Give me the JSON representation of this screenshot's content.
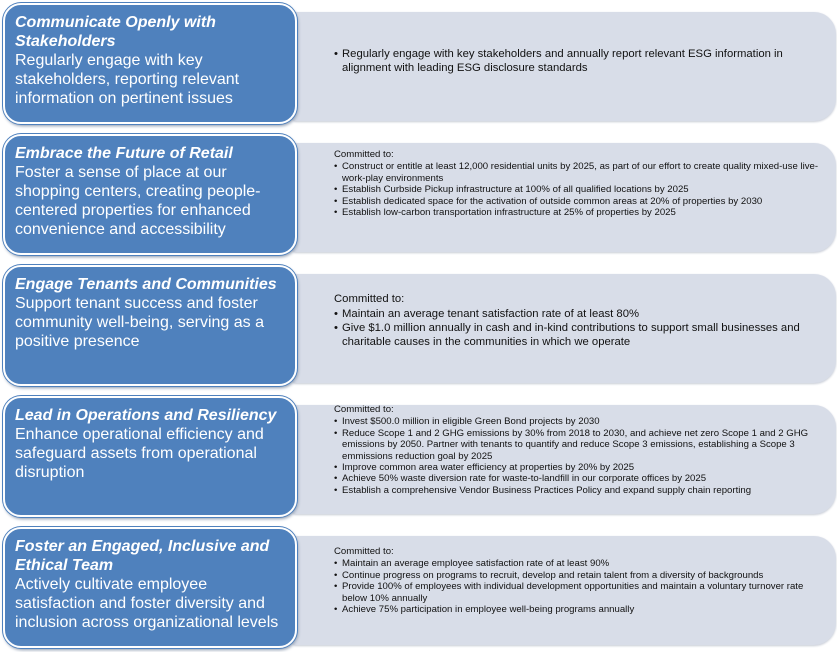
{
  "rows": [
    {
      "title": "Communicate Openly with Stakeholders",
      "description": "Regularly engage with key stakeholders, reporting relevant information on pertinent issues",
      "intro": "",
      "items": [
        "Regularly engage with key stakeholders and annually report relevant ESG information in alignment with leading ESG disclosure standards"
      ]
    },
    {
      "title": "Embrace the Future of Retail",
      "description": "Foster a sense of place at our shopping centers, creating people-centered properties for enhanced convenience and accessibility",
      "intro": "Committed to:",
      "items": [
        "Construct or entitle at least 12,000 residential units by 2025, as part of our effort to create quality mixed-use live-work-play environments",
        "Establish Curbside Pickup infrastructure at 100% of all qualified locations by 2025",
        "Establish dedicated space for the activation of outside common areas at 20% of properties by 2030",
        "Establish low-carbon transportation infrastructure at 25% of properties by 2025"
      ]
    },
    {
      "title": "Engage Tenants and Communities",
      "description": "Support tenant success and foster community well-being, serving as a positive presence",
      "intro": "Committed to:",
      "items": [
        "Maintain an average tenant satisfaction rate of at least 80%",
        "Give $1.0 million annually in cash and in-kind contributions to support small businesses and charitable causes in the communities in which we operate"
      ]
    },
    {
      "title": "Lead in Operations and Resiliency",
      "description": "Enhance operational efficiency and safeguard assets from operational disruption",
      "intro": "Committed to:",
      "items": [
        "Invest $500.0 million in eligible Green Bond projects by 2030",
        "Reduce Scope 1 and 2 GHG emissions by 30% from 2018 to 2030, and achieve net zero Scope 1 and 2 GHG emissions by 2050. Partner with tenants to quantify and reduce Scope 3 emissions, establishing a Scope 3 emmissions reduction goal by 2025",
        "Improve common area water efficiency at properties by 20% by 2025",
        "Achieve 50% waste diversion rate for waste-to-landfill in our corporate offices by 2025",
        "Establish a comprehensive Vendor Business Practices Policy and expand supply chain reporting"
      ]
    },
    {
      "title": "Foster an Engaged, Inclusive and Ethical Team",
      "description": "Actively cultivate employee satisfaction and foster diversity and inclusion across organizational levels",
      "intro": "Committed to:",
      "items": [
        "Maintain an average employee satisfaction rate of at least 90%",
        "Continue progress on programs to recruit, develop and retain talent from a diversity of backgrounds",
        "Provide 100% of employees with individual development opportunities and maintain a voluntary turnover rate below 10% annually",
        "Achieve 75% participation in employee well-being programs annually"
      ]
    }
  ]
}
